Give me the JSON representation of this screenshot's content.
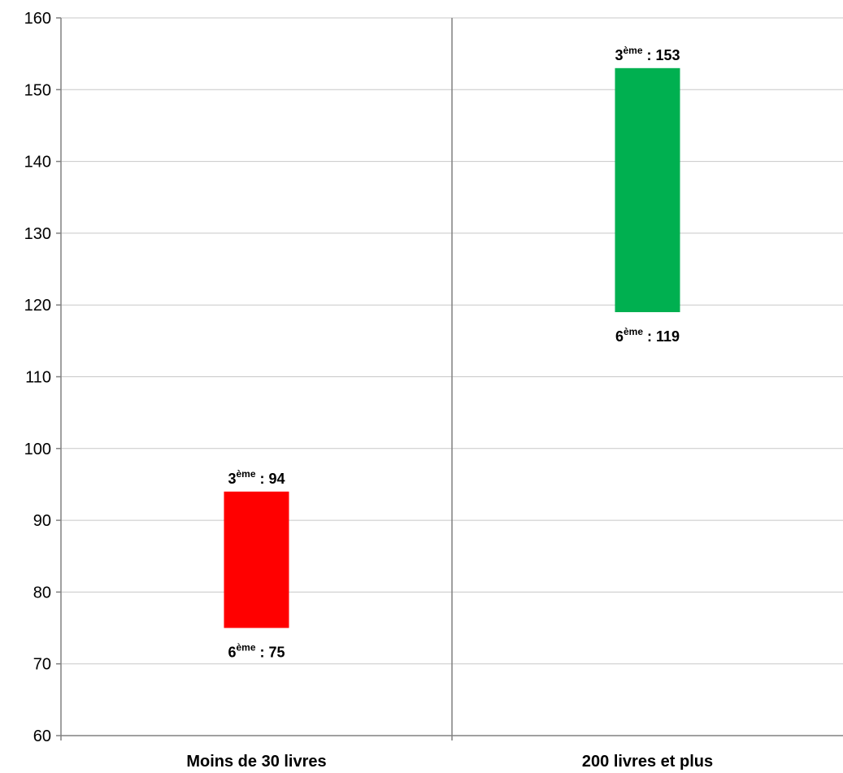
{
  "chart_data": {
    "type": "bar",
    "subtype": "floating-range",
    "title": "",
    "xlabel": "",
    "ylabel": "",
    "ylim": [
      60,
      160
    ],
    "yticks": [
      60,
      70,
      80,
      90,
      100,
      110,
      120,
      130,
      140,
      150,
      160
    ],
    "grid": true,
    "categories": [
      "Moins de 30 livres",
      "200 livres et plus"
    ],
    "ranges": [
      {
        "category": "Moins de 30 livres",
        "low": 75,
        "high": 94,
        "color": "#ff0000",
        "high_label": {
          "base": "3",
          "sup": "ème",
          "rest": " : 94"
        },
        "low_label": {
          "base": "6",
          "sup": "ème",
          "rest": " : 75"
        }
      },
      {
        "category": "200 livres et plus",
        "low": 119,
        "high": 153,
        "color": "#00b050",
        "high_label": {
          "base": "3",
          "sup": "ème",
          "rest": " : 153"
        },
        "low_label": {
          "base": "6",
          "sup": "ème",
          "rest": " : 119"
        }
      }
    ]
  }
}
